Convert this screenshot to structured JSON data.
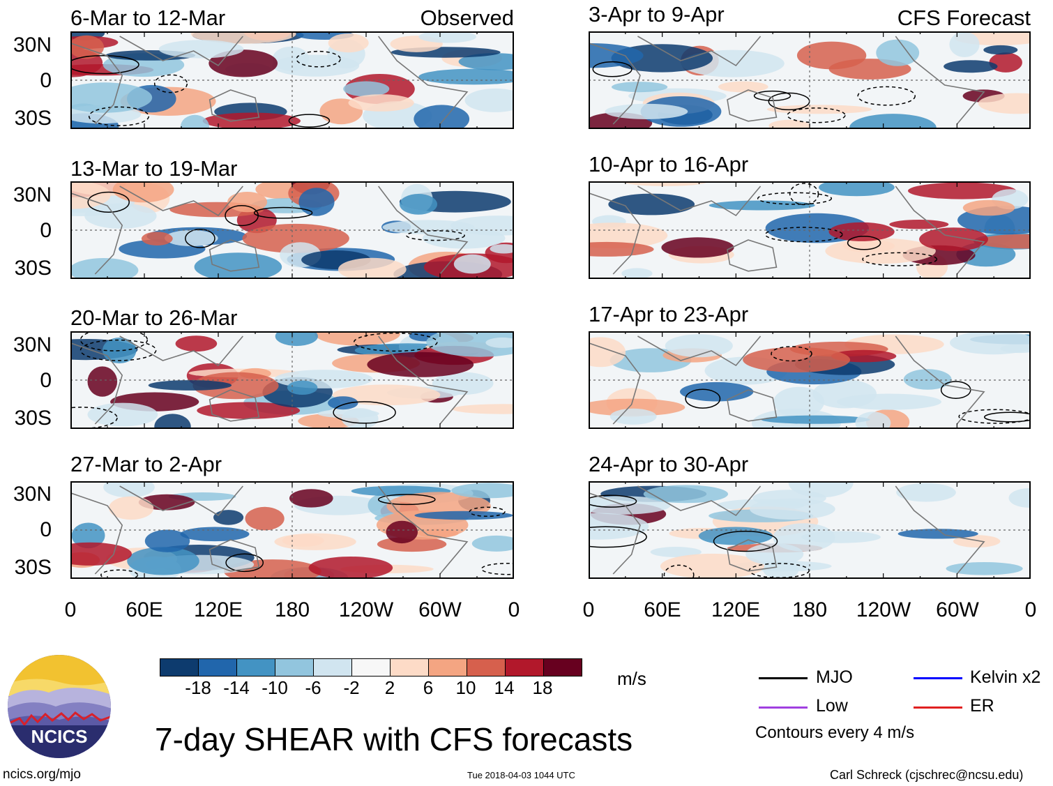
{
  "main_title": "7-day SHEAR with CFS forecasts",
  "observed_label": "Observed",
  "forecast_label": "CFS Forecast",
  "y_axis_labels": [
    "30N",
    "0",
    "30S"
  ],
  "x_axis_labels": [
    "0",
    "60E",
    "120E",
    "180",
    "120W",
    "60W",
    "0"
  ],
  "observed_panels": [
    {
      "title": "6-Mar to 12-Mar"
    },
    {
      "title": "13-Mar to 19-Mar"
    },
    {
      "title": "20-Mar to 26-Mar"
    },
    {
      "title": "27-Mar to 2-Apr"
    }
  ],
  "forecast_panels": [
    {
      "title": "3-Apr to 9-Apr"
    },
    {
      "title": "10-Apr to 16-Apr"
    },
    {
      "title": "17-Apr to 23-Apr"
    },
    {
      "title": "24-Apr to 30-Apr"
    }
  ],
  "colorbar": {
    "ticks": [
      "-18",
      "-14",
      "-10",
      "-6",
      "-2",
      "2",
      "6",
      "10",
      "14",
      "18"
    ],
    "colors": [
      "#0d3b6e",
      "#2166ac",
      "#4393c3",
      "#92c5de",
      "#d1e5f0",
      "#f7f7f7",
      "#fddbc7",
      "#f4a582",
      "#d6604d",
      "#b2182b",
      "#67001f"
    ],
    "units": "m/s"
  },
  "legend": {
    "items": [
      {
        "label": "MJO",
        "color": "#000000"
      },
      {
        "label": "Kelvin x2",
        "color": "#0000ff"
      },
      {
        "label": "Low",
        "color": "#a040e0"
      },
      {
        "label": "ER",
        "color": "#e02020"
      }
    ],
    "note": "Contours every 4 m/s"
  },
  "logo_text": "NCICS",
  "footer": {
    "url": "ncics.org/mjo",
    "timestamp": "Tue 2018-04-03 1044 UTC",
    "credit": "Carl Schreck (cjschrec@ncsu.edu)"
  }
}
